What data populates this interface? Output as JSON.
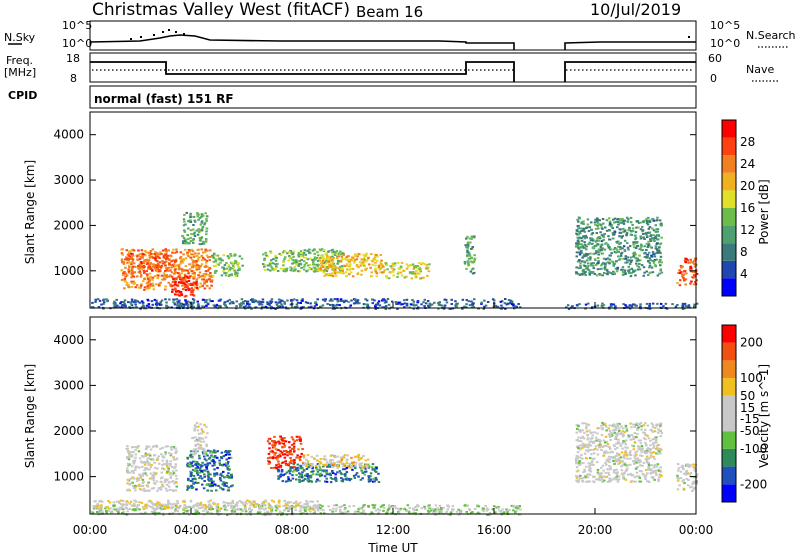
{
  "header": {
    "station": "Christmas Valley West (fitACF)",
    "beam": "Beam 16",
    "date": "10/Jul/2019"
  },
  "noise_panel": {
    "left_label": "N.Sky",
    "left_ticks": [
      "10^5",
      "10^0"
    ],
    "right_ticks": [
      "10^5",
      "10^0"
    ],
    "right_label": "N.Search"
  },
  "freq_panel": {
    "left_label_1": "Freq.",
    "left_label_2": "[MHz]",
    "left_ticks": [
      "18",
      "8"
    ],
    "right_ticks": [
      "60",
      "0"
    ],
    "right_label": "Nave"
  },
  "cpid_panel": {
    "label": "CPID",
    "program": "normal (fast) 151 RF"
  },
  "colors": {
    "scale_power": [
      "#0000ff",
      "#2046b0",
      "#3c7a7a",
      "#4ea070",
      "#6cbc4c",
      "#e0e028",
      "#f0b020",
      "#f08020",
      "#ff4010",
      "#ff0000"
    ],
    "scale_velocity": [
      "#0000ff",
      "#2050c0",
      "#2e8a5a",
      "#60c040",
      "#c8c8c8",
      "#c8c8c8",
      "#f0c020",
      "#f08820",
      "#f05010",
      "#ff0000"
    ]
  },
  "chart_data": [
    {
      "type": "heatmap",
      "name": "power",
      "ylabel": "Slant Range [km]",
      "yticks": [
        "4000",
        "3000",
        "2000",
        "1000"
      ],
      "ytick_values": [
        4000,
        3000,
        2000,
        1000
      ],
      "ylim": [
        180,
        4500
      ],
      "xlim_hours": [
        0,
        24
      ],
      "colorbar_label": "Power [dB]",
      "colorbar_ticks": [
        "28",
        "24",
        "20",
        "16",
        "12",
        "8",
        "4"
      ],
      "colorbar_tick_values": [
        28,
        24,
        20,
        16,
        12,
        8,
        4
      ],
      "colorbar_range": [
        0,
        32
      ],
      "regions": [
        {
          "t0": 1.2,
          "t1": 4.8,
          "r0": 600,
          "r1": 1500,
          "value": 24
        },
        {
          "t0": 3.2,
          "t1": 4.2,
          "r0": 450,
          "r1": 900,
          "value": 30
        },
        {
          "t0": 1.4,
          "t1": 3.2,
          "r0": 1000,
          "r1": 1400,
          "value": 26
        },
        {
          "t0": 4.8,
          "t1": 6.0,
          "r0": 900,
          "r1": 1400,
          "value": 14
        },
        {
          "t0": 3.6,
          "t1": 4.6,
          "r0": 1600,
          "r1": 2300,
          "value": 12
        },
        {
          "t0": 6.8,
          "t1": 10.0,
          "r0": 1000,
          "r1": 1500,
          "value": 14
        },
        {
          "t0": 9.0,
          "t1": 11.6,
          "r0": 900,
          "r1": 1400,
          "value": 20
        },
        {
          "t0": 11.6,
          "t1": 13.4,
          "r0": 850,
          "r1": 1200,
          "value": 18
        },
        {
          "t0": 14.8,
          "t1": 15.2,
          "r0": 900,
          "r1": 1800,
          "value": 12
        },
        {
          "t0": 19.2,
          "t1": 22.6,
          "r0": 900,
          "r1": 2200,
          "value": 10
        },
        {
          "t0": 23.2,
          "t1": 24.0,
          "r0": 700,
          "r1": 1300,
          "value": 26
        },
        {
          "t0": 0.0,
          "t1": 17.0,
          "r0": 180,
          "r1": 400,
          "value": 6
        },
        {
          "t0": 18.8,
          "t1": 24.0,
          "r0": 180,
          "r1": 300,
          "value": 6
        }
      ]
    },
    {
      "type": "heatmap",
      "name": "velocity",
      "ylabel": "Slant Range [km]",
      "yticks": [
        "4000",
        "3000",
        "2000",
        "1000"
      ],
      "ytick_values": [
        4000,
        3000,
        2000,
        1000
      ],
      "ylim": [
        180,
        4500
      ],
      "xlim_hours": [
        0,
        24
      ],
      "xticks": [
        "00:00",
        "04:00",
        "08:00",
        "12:00",
        "16:00",
        "20:00",
        "00:00"
      ],
      "xtick_values": [
        0,
        4,
        8,
        12,
        16,
        20,
        24
      ],
      "xlabel": "Time UT",
      "colorbar_label": "Velocity [m s^-1]",
      "colorbar_ticks": [
        "200",
        "100",
        "50",
        "15",
        "-15",
        "-50",
        "-100",
        "-200"
      ],
      "colorbar_tick_values": [
        200,
        100,
        50,
        15,
        -15,
        -50,
        -100,
        -200
      ],
      "colorbar_range": [
        -250,
        250
      ],
      "regions": [
        {
          "t0": 1.4,
          "t1": 3.4,
          "r0": 700,
          "r1": 1700,
          "value": 0
        },
        {
          "t0": 3.8,
          "t1": 5.6,
          "r0": 700,
          "r1": 1600,
          "value": -150
        },
        {
          "t0": 4.0,
          "t1": 4.6,
          "r0": 1500,
          "r1": 2200,
          "value": 0
        },
        {
          "t0": 7.0,
          "t1": 8.4,
          "r0": 1200,
          "r1": 1900,
          "value": 200
        },
        {
          "t0": 7.4,
          "t1": 11.4,
          "r0": 900,
          "r1": 1300,
          "value": -150
        },
        {
          "t0": 8.4,
          "t1": 11.0,
          "r0": 1200,
          "r1": 1500,
          "value": 60
        },
        {
          "t0": 19.2,
          "t1": 22.6,
          "r0": 900,
          "r1": 2200,
          "value": 0
        },
        {
          "t0": 23.2,
          "t1": 24.0,
          "r0": 700,
          "r1": 1300,
          "value": 0
        },
        {
          "t0": 0.0,
          "t1": 17.0,
          "r0": 180,
          "r1": 400,
          "value": -40
        },
        {
          "t0": 0.0,
          "t1": 9.0,
          "r0": 300,
          "r1": 500,
          "value": 30
        }
      ]
    }
  ]
}
